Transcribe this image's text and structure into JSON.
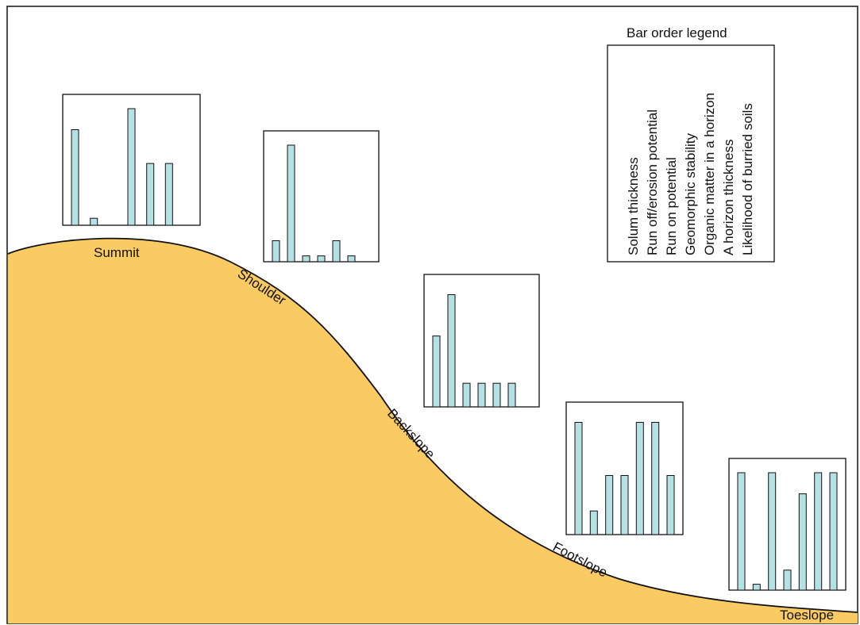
{
  "landform_labels": {
    "summit": "Summit",
    "shoulder": "Shoulder",
    "backslope": "Backslope",
    "footslope": "Footslope",
    "toeslope": "Toeslope"
  },
  "legend": {
    "title": "Bar order legend",
    "items": [
      "Solum thickness",
      "Run off/erosion potential",
      "Run on potential",
      "Geomorphic stability",
      "Organic matter in a horizon",
      "A horizon thickness",
      "Likelihood of burried soils"
    ]
  },
  "colors": {
    "slope_fill": "#FBCB63",
    "bar_fill": "#B5E1E5",
    "stroke": "#111111"
  },
  "chart_data": {
    "type": "bar",
    "note_scale": "relative values 0-1 per panel (no axis printed)",
    "categories": [
      "Solum thickness",
      "Run off/erosion potential",
      "Run on potential",
      "Geomorphic stability",
      "Organic matter in a horizon",
      "A horizon thickness",
      "Likelihood of burried soils"
    ],
    "panels": [
      {
        "position": "Summit",
        "values": [
          0.82,
          0.06,
          0,
          1.0,
          0.53,
          0.53,
          0
        ]
      },
      {
        "position": "Shoulder",
        "values": [
          0.18,
          1.0,
          0.05,
          0.05,
          0.18,
          0.05,
          0
        ]
      },
      {
        "position": "Backslope",
        "values": [
          0.6,
          0.95,
          0.2,
          0.2,
          0.2,
          0.2,
          0
        ]
      },
      {
        "position": "Footslope",
        "values": [
          0.95,
          0.2,
          0.5,
          0.5,
          0.95,
          0.95,
          0.5
        ]
      },
      {
        "position": "Toeslope",
        "values": [
          1.0,
          0.05,
          1.0,
          0.17,
          0.82,
          1.0,
          1.0
        ]
      }
    ]
  }
}
